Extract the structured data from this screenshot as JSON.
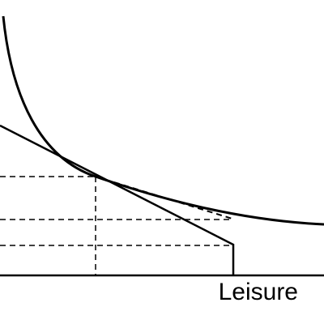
{
  "x_axis": {
    "label": "Leisure"
  }
}
